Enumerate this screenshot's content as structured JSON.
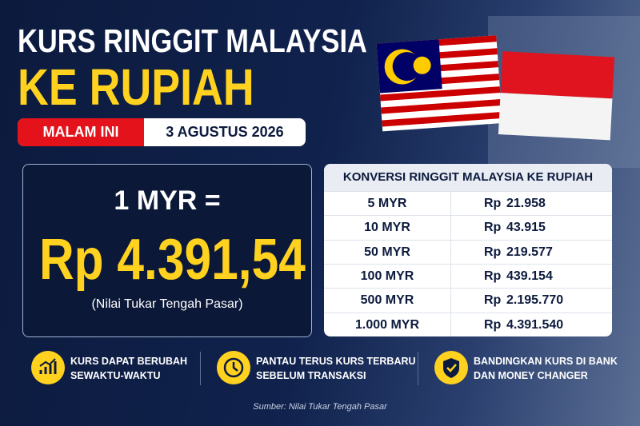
{
  "header": {
    "title_line1": "KURS RINGGIT MALAYSIA",
    "title_line2": "KE RUPIAH",
    "badge": "MALAM INI",
    "date": "3 AGUSTUS 2026"
  },
  "main_rate": {
    "base": "1 MYR =",
    "rate": "Rp 4.391,54",
    "note": "(Nilai Tukar Tengah Pasar)"
  },
  "table": {
    "title": "KONVERSI RINGGIT MALAYSIA KE RUPIAH",
    "rows": [
      [
        "5 MYR",
        "Rp",
        "21.958"
      ],
      [
        "10 MYR",
        "Rp",
        "43.915"
      ],
      [
        "50 MYR",
        "Rp",
        "219.577"
      ],
      [
        "100 MYR",
        "Rp",
        "439.154"
      ],
      [
        "500 MYR",
        "Rp",
        "2.195.770"
      ],
      [
        "1.000 MYR",
        "Rp",
        "4.391.540"
      ]
    ]
  },
  "features": [
    [
      "KURS DAPAT BERUBAH",
      "SEWAKTU-WAKTU"
    ],
    [
      "PANTAU TERUS KURS TERBARU",
      "SEBELUM TRANSAKSI"
    ],
    [
      "BANDINGKAN KURS DI BANK",
      "DAN MONEY CHANGER"
    ]
  ],
  "source": "Sumber: Nilai Tukar Tengah Pasar"
}
